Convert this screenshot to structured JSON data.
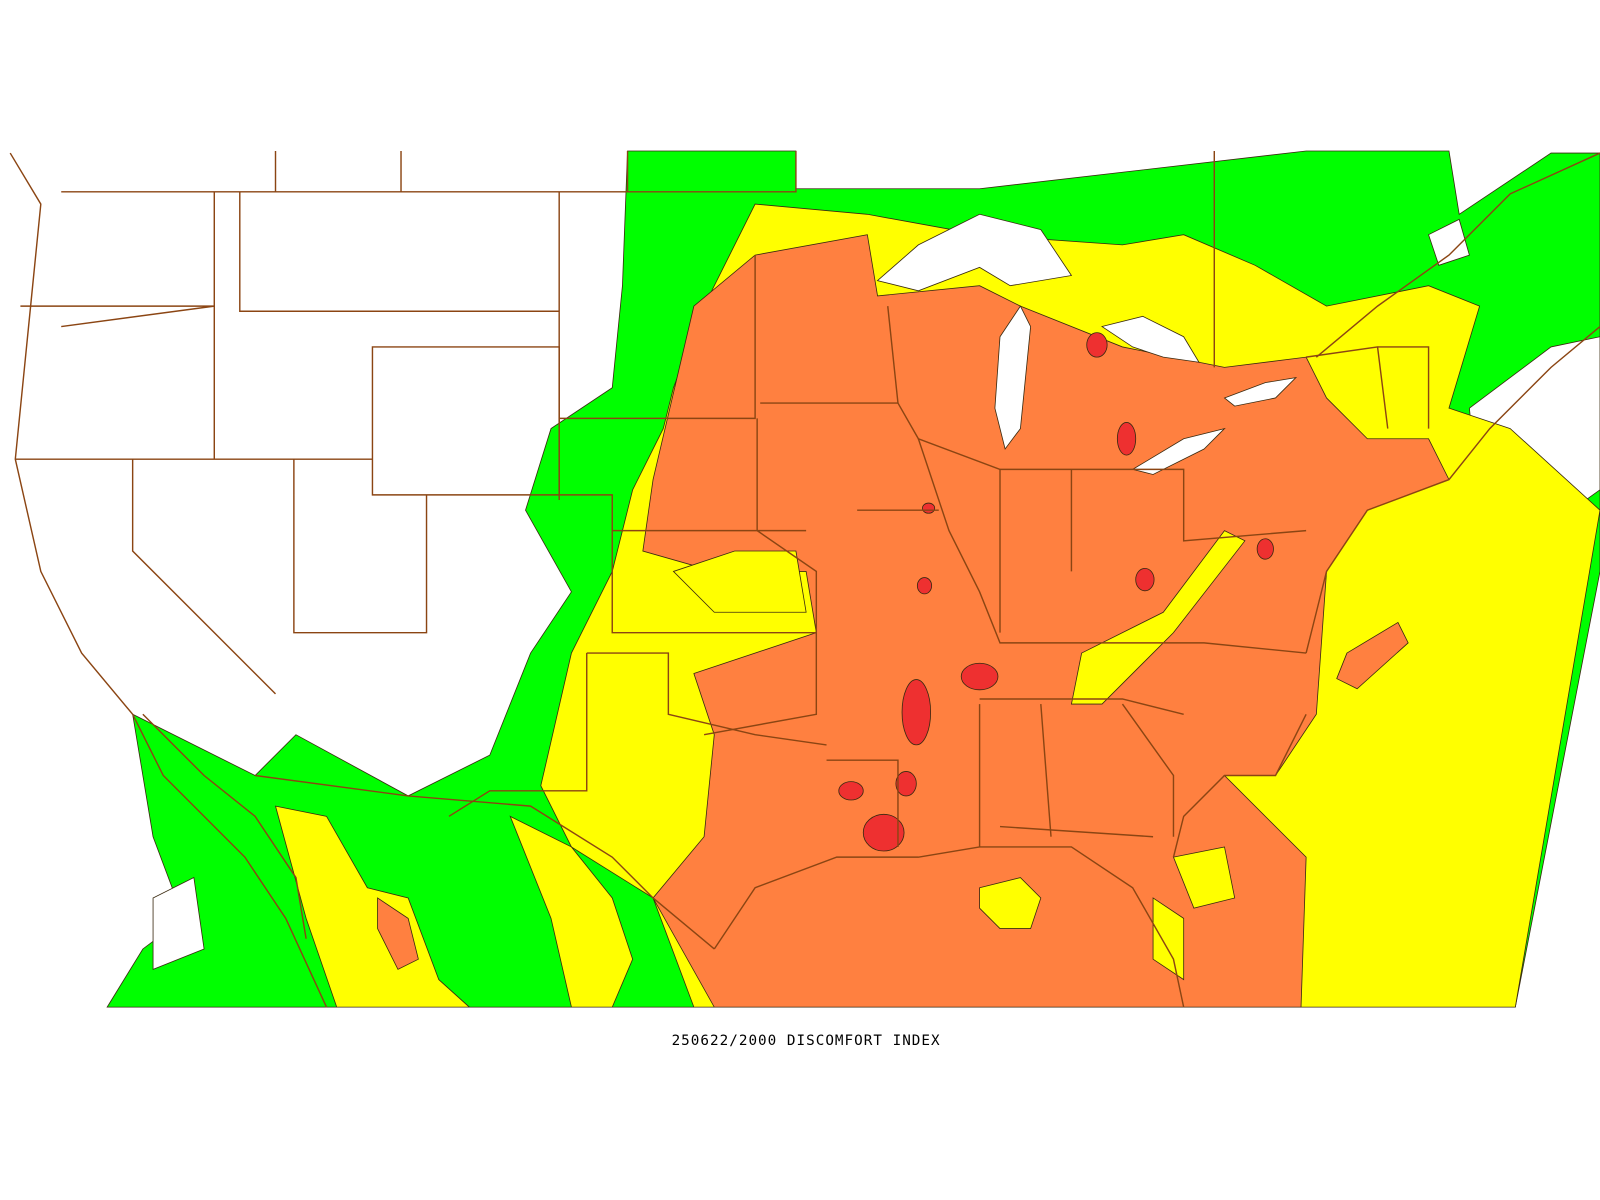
{
  "caption": "250622/2000 DISCOMFORT INDEX"
}
